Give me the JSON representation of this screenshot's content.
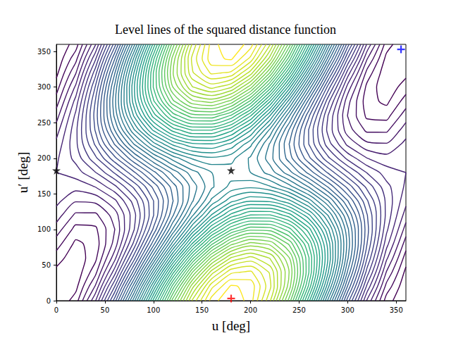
{
  "chart_data": {
    "type": "contour",
    "title": "Level lines of the squared distance function",
    "x_label": "u [deg]",
    "y_label": "u′ [deg]",
    "xlim": [
      0,
      360
    ],
    "ylim": [
      0,
      360
    ],
    "xticks": [
      0,
      50,
      100,
      150,
      200,
      250,
      300,
      350
    ],
    "yticks": [
      0,
      50,
      100,
      150,
      200,
      250,
      300,
      350
    ],
    "grid": false,
    "x": [
      0,
      20,
      40,
      60,
      80,
      100,
      120,
      140,
      160,
      180,
      200,
      220,
      240,
      260,
      280,
      300,
      320,
      340,
      360
    ],
    "y": [
      0,
      20,
      40,
      60,
      80,
      100,
      120,
      140,
      160,
      180,
      200,
      220,
      240,
      260,
      280,
      300,
      320,
      340,
      360
    ],
    "z": [
      [
        0,
        0.6,
        2.34,
        5,
        8.26,
        11.74,
        15,
        17.66,
        19.4,
        20,
        19.4,
        17.66,
        15,
        11.74,
        8.26,
        5,
        2.34,
        0.6,
        0
      ],
      [
        0.07,
        0.27,
        1.63,
        3.98,
        7.04,
        10.44,
        13.78,
        16.64,
        18.69,
        19.67,
        19.47,
        18.11,
        15.76,
        12.7,
        9.3,
        5.96,
        3.1,
        1.06,
        0.07
      ],
      [
        0.28,
        0.1,
        1.05,
        3.02,
        5.78,
        8.98,
        12.24,
        15.17,
        17.42,
        18.71,
        18.89,
        17.94,
        15.97,
        13.22,
        10.02,
        6.75,
        3.82,
        1.57,
        0.28
      ],
      [
        0.6,
        0.11,
        0.68,
        2.25,
        4.62,
        7.51,
        10.58,
        13.44,
        15.76,
        17.25,
        17.74,
        17.17,
        15.6,
        13.23,
        10.34,
        7.28,
        4.41,
        2.09,
        0.6
      ],
      [
        0.99,
        0.3,
        0.56,
        1.75,
        3.72,
        6.23,
        8.98,
        11.64,
        13.89,
        15.46,
        16.15,
        15.88,
        14.7,
        12.73,
        10.22,
        7.46,
        4.8,
        2.56,
        0.99
      ],
      [
        1.41,
        0.65,
        0.71,
        1.59,
        3.18,
        5.28,
        7.65,
        10.01,
        12.05,
        13.55,
        14.31,
        14.25,
        13.37,
        11.78,
        9.67,
        7.3,
        4.95,
        2.9,
        1.41
      ],
      [
        1.8,
        1.11,
        1.1,
        1.78,
        3.06,
        4.78,
        6.75,
        8.72,
        10.46,
        11.75,
        12.44,
        12.45,
        11.78,
        10.5,
        8.77,
        6.8,
        4.83,
        3.09,
        1.8
      ],
      [
        2.12,
        1.63,
        1.69,
        2.3,
        3.37,
        4.79,
        6.38,
        7.95,
        9.3,
        10.29,
        10.78,
        10.72,
        10.11,
        9.03,
        7.62,
        6.03,
        4.46,
        3.1,
        2.12
      ],
      [
        2.33,
        2.15,
        2.41,
        3.09,
        4.09,
        5.31,
        6.59,
        7.78,
        8.73,
        9.33,
        9.51,
        9.25,
        8.57,
        7.57,
        6.35,
        5.07,
        3.88,
        2.93,
        2.33
      ],
      [
        2.4,
        2.6,
        3.17,
        4.05,
        5.13,
        6.27,
        7.35,
        8.23,
        8.8,
        9,
        8.8,
        8.23,
        7.35,
        6.27,
        5.13,
        4.05,
        3.17,
        2.6,
        2.4
      ],
      [
        2.33,
        2.93,
        3.88,
        5.07,
        6.35,
        7.57,
        8.57,
        9.25,
        9.51,
        9.33,
        8.73,
        7.78,
        6.59,
        5.31,
        4.09,
        3.09,
        2.41,
        2.15,
        2.33
      ],
      [
        2.12,
        3.1,
        4.46,
        6.03,
        7.62,
        9.03,
        10.11,
        10.72,
        10.78,
        10.29,
        9.3,
        7.95,
        6.38,
        4.79,
        3.37,
        2.3,
        1.69,
        1.63,
        2.12
      ],
      [
        1.8,
        3.09,
        4.83,
        6.8,
        8.77,
        10.5,
        11.78,
        12.45,
        12.44,
        11.75,
        10.46,
        8.72,
        6.75,
        4.78,
        3.06,
        1.78,
        1.1,
        1.11,
        1.8
      ],
      [
        1.41,
        2.9,
        4.95,
        7.3,
        9.67,
        11.78,
        13.37,
        14.25,
        14.31,
        13.55,
        12.05,
        10.01,
        7.65,
        5.28,
        3.18,
        1.59,
        0.71,
        0.65,
        1.41
      ],
      [
        0.99,
        2.56,
        4.8,
        7.46,
        10.22,
        12.73,
        14.7,
        15.88,
        16.15,
        15.46,
        13.89,
        11.64,
        8.98,
        6.23,
        3.72,
        1.75,
        0.56,
        0.3,
        0.99
      ],
      [
        0.6,
        2.09,
        4.41,
        7.28,
        10.34,
        13.23,
        15.6,
        17.17,
        17.74,
        17.25,
        15.76,
        13.44,
        10.58,
        7.51,
        4.62,
        2.25,
        0.68,
        0.11,
        0.6
      ],
      [
        0.28,
        1.57,
        3.82,
        6.75,
        10.02,
        13.22,
        15.97,
        17.94,
        18.89,
        18.71,
        17.42,
        15.17,
        12.24,
        8.98,
        5.78,
        3.02,
        1.05,
        0.1,
        0.28
      ],
      [
        0.07,
        1.06,
        3.1,
        5.96,
        9.3,
        12.7,
        15.76,
        18.11,
        19.47,
        19.67,
        18.69,
        16.64,
        13.78,
        10.44,
        7.04,
        3.98,
        1.63,
        0.27,
        0.07
      ],
      [
        0,
        0.6,
        2.34,
        5,
        8.26,
        11.74,
        15,
        17.66,
        19.4,
        20,
        19.4,
        17.66,
        15,
        11.74,
        8.26,
        5,
        2.34,
        0.6,
        0
      ]
    ],
    "levels": [
      0.4,
      0.8,
      1.2,
      1.6,
      2,
      2.4,
      2.8,
      3.2,
      3.6,
      4,
      4.4,
      4.8,
      5.2,
      5.6,
      6,
      6.4,
      6.8,
      7.2,
      7.6,
      8,
      8.4,
      8.8,
      9.2,
      9.6,
      10,
      10.4,
      10.8,
      11.2,
      11.6,
      12,
      12.4,
      12.8,
      13.2,
      13.6,
      14,
      14.4,
      14.8,
      15.2,
      15.6,
      16,
      16.4,
      16.8,
      17.2,
      17.6,
      18,
      18.4,
      18.8,
      19.2,
      19.6
    ],
    "markers": [
      {
        "x": 180,
        "y": 3,
        "marker": "plus",
        "color": "#ff0000"
      },
      {
        "x": 355,
        "y": 353,
        "marker": "plus",
        "color": "#0000ff"
      },
      {
        "x": 0,
        "y": 183,
        "marker": "star",
        "color": "#000000"
      },
      {
        "x": 180,
        "y": 183,
        "marker": "star",
        "color": "#000000"
      }
    ]
  }
}
